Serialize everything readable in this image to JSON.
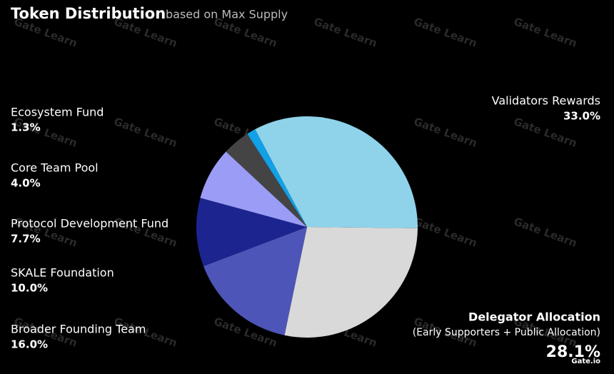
{
  "chart_data": {
    "type": "pie",
    "title": "Token Distribution",
    "subtitle": "based on Max Supply",
    "categories": [
      "Validators Rewards",
      "Delegator Allocation",
      "Broader Founding Team",
      "SKALE Foundation",
      "Protocol Development Fund",
      "Core Team Pool",
      "Ecosystem Fund"
    ],
    "values": [
      33.0,
      28.1,
      16.0,
      10.0,
      7.7,
      4.0,
      1.3
    ],
    "value_labels": [
      "33.0%",
      "28.1%",
      "16.0%",
      "10.0%",
      "7.7%",
      "4.0%",
      "1.3%"
    ],
    "colors": [
      "#8fd3ea",
      "#d9d9d9",
      "#4e55b8",
      "#1c2490",
      "#9a9cf5",
      "#444444",
      "#12a0e6"
    ],
    "annotation": "(Early Supporters + Public Allocation)",
    "watermark": "Gate Learn",
    "logo": "Gate.io"
  }
}
